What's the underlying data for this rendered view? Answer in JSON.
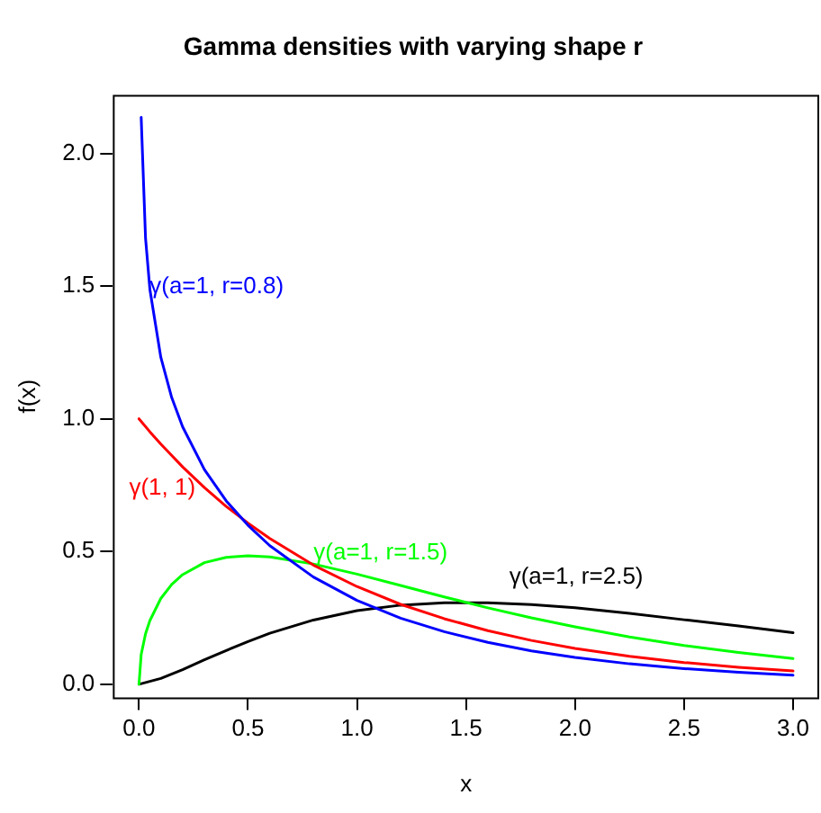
{
  "chart_data": {
    "type": "line",
    "title": "Gamma densities with varying shape r",
    "xlabel": "x",
    "ylabel": "f(x)",
    "xlim": [
      -0.12,
      3.12
    ],
    "ylim": [
      -0.05,
      2.22
    ],
    "xticks": [
      {
        "value": 0,
        "label": "0.0"
      },
      {
        "value": 0.5,
        "label": "0.5"
      },
      {
        "value": 1,
        "label": "1.0"
      },
      {
        "value": 1.5,
        "label": "1.5"
      },
      {
        "value": 2,
        "label": "2.0"
      },
      {
        "value": 2.5,
        "label": "2.5"
      },
      {
        "value": 3,
        "label": "3.0"
      }
    ],
    "yticks": [
      {
        "value": 0,
        "label": "0.0"
      },
      {
        "value": 0.5,
        "label": "0.5"
      },
      {
        "value": 1,
        "label": "1.0"
      },
      {
        "value": 1.5,
        "label": "1.5"
      },
      {
        "value": 2,
        "label": "2.0"
      }
    ],
    "grid": false,
    "legend": false,
    "marker": "none",
    "line_style": "solid",
    "series": [
      {
        "name": "γ(a=1, r=0.8)",
        "color": "#0000ff",
        "x": [
          0.01,
          0.03,
          0.05,
          0.1,
          0.15,
          0.2,
          0.3,
          0.4,
          0.5,
          0.6,
          0.8,
          1,
          1.2,
          1.4,
          1.6,
          1.8,
          2,
          2.25,
          2.5,
          2.75,
          3
        ],
        "values": [
          2.136,
          1.68,
          1.487,
          1.232,
          1.08,
          0.97,
          0.809,
          0.691,
          0.599,
          0.522,
          0.404,
          0.316,
          0.249,
          0.198,
          0.158,
          0.126,
          0.101,
          0.077,
          0.059,
          0.045,
          0.034
        ]
      },
      {
        "name": "γ(1, 1)",
        "color": "#ff0000",
        "x": [
          0,
          0.05,
          0.1,
          0.2,
          0.3,
          0.4,
          0.5,
          0.6,
          0.8,
          1,
          1.2,
          1.4,
          1.6,
          1.8,
          2,
          2.25,
          2.5,
          2.75,
          3
        ],
        "values": [
          1,
          0.951,
          0.905,
          0.819,
          0.741,
          0.67,
          0.607,
          0.549,
          0.449,
          0.368,
          0.301,
          0.247,
          0.202,
          0.165,
          0.135,
          0.105,
          0.082,
          0.064,
          0.05
        ]
      },
      {
        "name": "γ(a=1, r=1.5)",
        "color": "#00ff00",
        "x": [
          0,
          0.01,
          0.03,
          0.05,
          0.1,
          0.15,
          0.2,
          0.3,
          0.4,
          0.5,
          0.6,
          0.8,
          1,
          1.2,
          1.4,
          1.6,
          1.8,
          2,
          2.25,
          2.5,
          2.75,
          3
        ],
        "values": [
          0,
          0.112,
          0.19,
          0.24,
          0.323,
          0.376,
          0.413,
          0.458,
          0.478,
          0.484,
          0.48,
          0.453,
          0.415,
          0.372,
          0.329,
          0.288,
          0.25,
          0.216,
          0.178,
          0.146,
          0.12,
          0.097
        ]
      },
      {
        "name": "γ(a=1, r=2.5)",
        "color": "#000000",
        "x": [
          0,
          0.1,
          0.2,
          0.3,
          0.4,
          0.5,
          0.6,
          0.8,
          1,
          1.2,
          1.4,
          1.6,
          1.8,
          2,
          2.25,
          2.5,
          2.75,
          3
        ],
        "values": [
          0,
          0.022,
          0.055,
          0.092,
          0.127,
          0.161,
          0.192,
          0.242,
          0.277,
          0.298,
          0.307,
          0.307,
          0.3,
          0.288,
          0.267,
          0.243,
          0.22,
          0.194
        ]
      }
    ]
  }
}
